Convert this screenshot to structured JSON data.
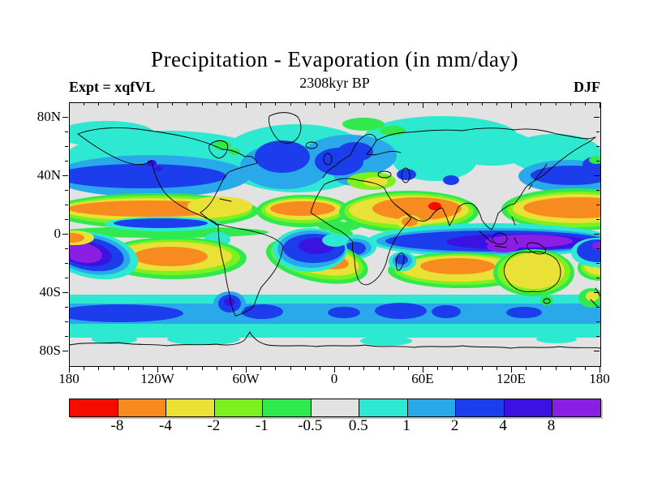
{
  "header": {
    "title": "Precipitation - Evaporation (in mm/day)",
    "subtitle": "2308kyr BP",
    "experiment_label": "Expt = xqfVL",
    "season": "DJF"
  },
  "map": {
    "lat_tick_labels": [
      "80N",
      "40N",
      "0",
      "40S",
      "80S"
    ],
    "lat_tick_degrees": [
      80,
      40,
      0,
      -40,
      -80
    ],
    "lon_tick_labels": [
      "180",
      "120W",
      "60W",
      "0",
      "60E",
      "120E",
      "180"
    ],
    "lon_tick_degrees": [
      -180,
      -120,
      -60,
      0,
      60,
      120,
      180
    ],
    "minor_tick_step_degrees": 10
  },
  "colorbar": {
    "boundary_labels": [
      "-8",
      "-4",
      "-2",
      "-1",
      "-0.5",
      "0.5",
      "1",
      "2",
      "4",
      "8"
    ],
    "colors": [
      "#f60b00",
      "#f78b1f",
      "#e9e135",
      "#7cf11f",
      "#2fe94d",
      "#e2e2e2",
      "#2de9d2",
      "#2aa9ea",
      "#1b3deb",
      "#3a13e3",
      "#8a1fe3"
    ]
  },
  "chart_data": {
    "type": "filled_contour_map",
    "title": "Precipitation - Evaporation (in mm/day)",
    "subtitle": "2308kyr BP",
    "experiment": "xqfVL",
    "season": "DJF",
    "variable": "P-E",
    "units": "mm/day",
    "projection": "equirectangular",
    "lon_range": [
      -180,
      180
    ],
    "lat_range": [
      -90,
      90
    ],
    "contour_levels": [
      -8,
      -4,
      -2,
      -1,
      -0.5,
      0.5,
      1,
      2,
      4,
      8
    ],
    "palette": [
      "#f60b00",
      "#f78b1f",
      "#e9e135",
      "#7cf11f",
      "#2fe94d",
      "#e2e2e2",
      "#2de9d2",
      "#2aa9ea",
      "#1b3deb",
      "#3a13e3",
      "#8a1fe3"
    ],
    "legend_position": "bottom",
    "regions_summary": [
      "Orange dry bands (P-E about -4 to -2) over subtropical oceans near 10-25N in Pacific, Atlantic, Arabia/India and west Pacific",
      "Red spot (P-E < -8) over the Arabian Sea west of India",
      "Deep blue/violet wet band (P-E > 4) along 0-12S across the Indian Ocean and west Pacific, purple maximum (P-E > 8) over the Maritime Continent",
      "Purple SPCZ maximum south of the equator near the date line",
      "Blue storm-track bands (P-E 2-4) over the North Pacific at 30-45N, North Atlantic, northern Europe and NW Pacific",
      "Orange/yellow dry ovals near 15-30S in SE Pacific, South Atlantic and southern Indian Ocean; Australia yellow with green fringe",
      "Sky-blue and cyan circumpolar wet bands over the Southern Ocean 45-65S",
      "Near-zero gray over the Sahara, central Asia, Arctic, Antarctica and mid-latitude gaps",
      "Wet blue/violet blob over Amazonia and southern Africa wet season; cyan over Siberia and northern Canada"
    ]
  }
}
